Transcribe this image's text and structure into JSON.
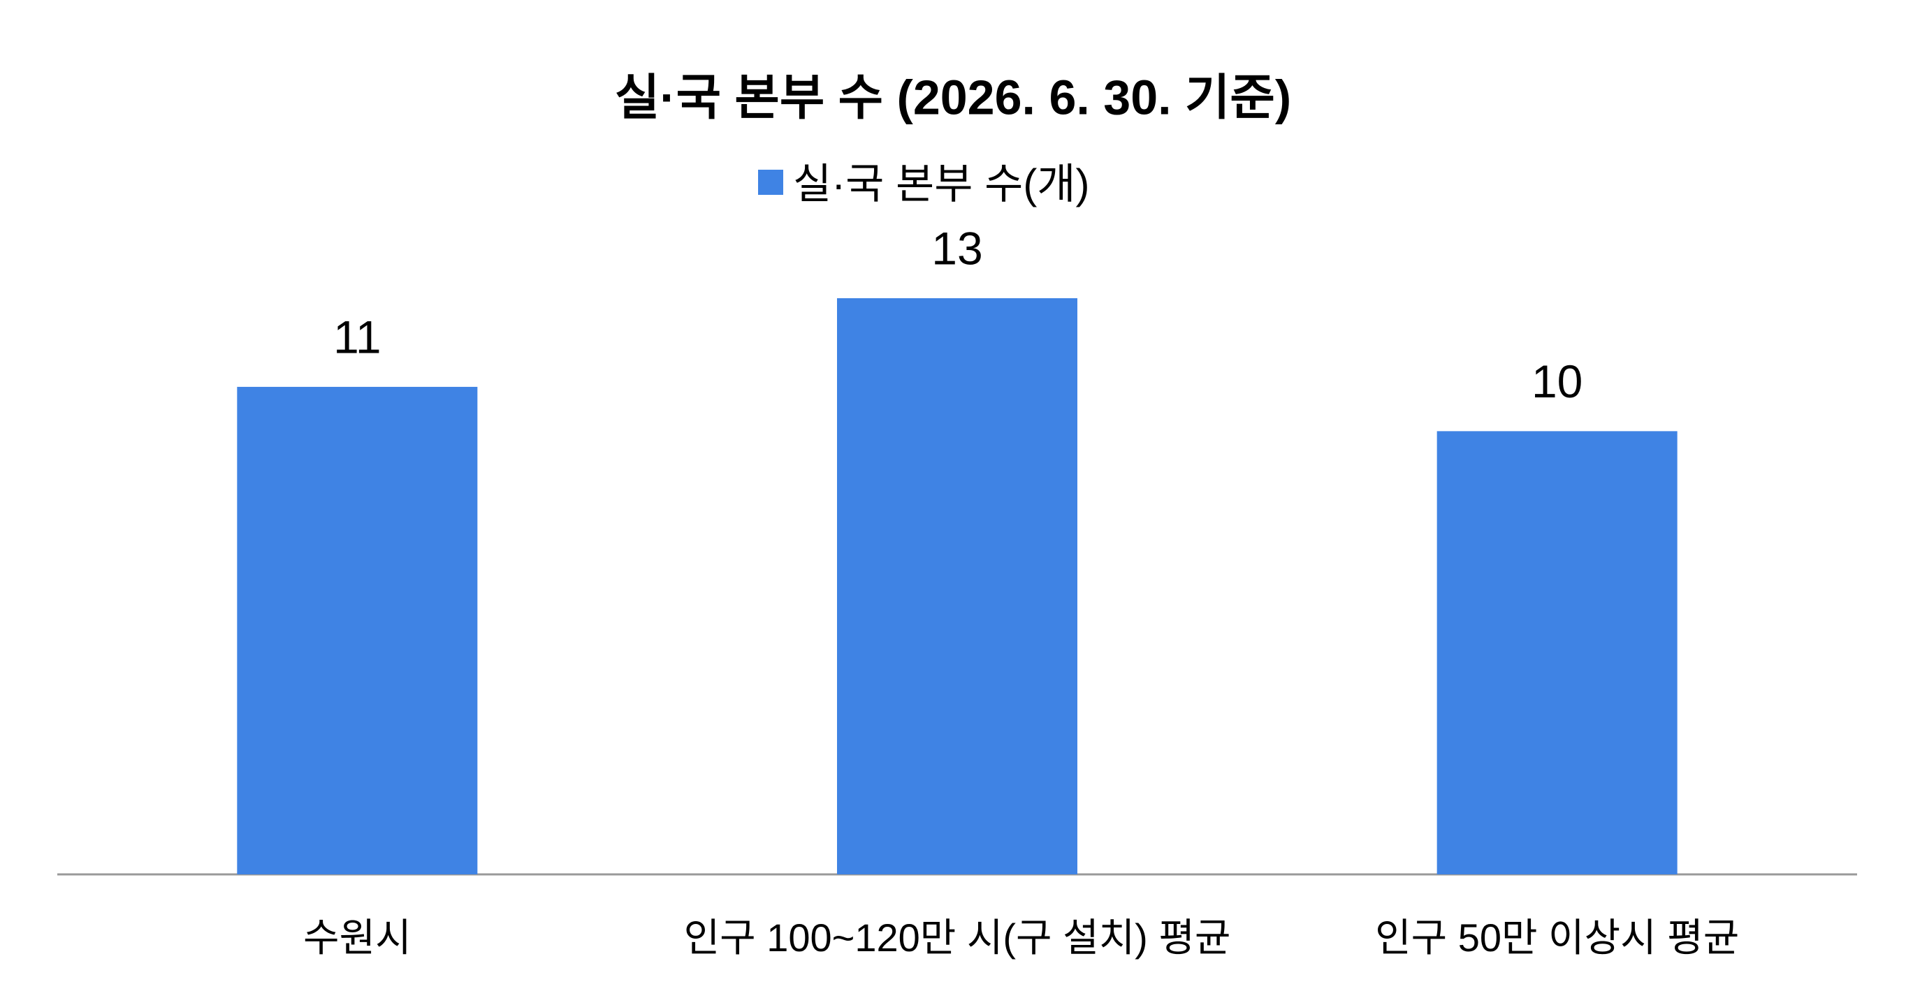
{
  "chart_data": {
    "type": "bar",
    "title": "실·국 본부 수 (2026. 6. 30. 기준)",
    "categories": [
      "수원시",
      "인구 100~120만 시(구 설치) 평균",
      "인구 50만 이상시 평균"
    ],
    "series": [
      {
        "name": "실·국 본부 수(개)",
        "color": "#3f83e4",
        "values": [
          11,
          13,
          10
        ]
      }
    ],
    "legend": "top"
  }
}
